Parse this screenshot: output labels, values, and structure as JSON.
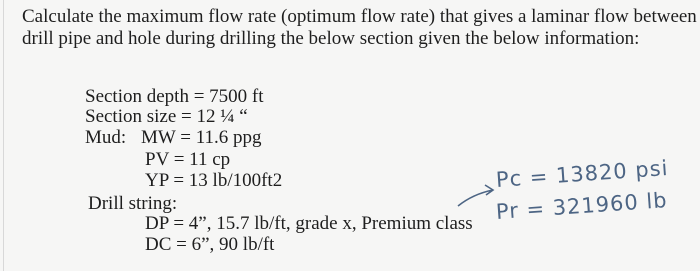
{
  "question": {
    "lines": [
      "Calculate the maximum flow rate (optimum flow rate) that gives a laminar flow between",
      "drill pipe and hole during drilling the below section given the below information:"
    ]
  },
  "given": {
    "section_depth": "Section depth = 7500 ft",
    "section_size": "Section size = 12 ¼ “",
    "mud_label": "Mud:",
    "mw": "MW = 11.6 ppg",
    "pv": "PV = 11 cp",
    "yp": "YP = 13 lb/100ft2",
    "drill_string_label": "Drill string:",
    "dp": "DP = 4”, 15.7 lb/ft, grade x, Premium class",
    "dc": "DC = 6”, 90 lb/ft"
  },
  "handwritten": {
    "pc": "Pc = 13820 psi",
    "pr": "Pr = 321960 lb"
  }
}
